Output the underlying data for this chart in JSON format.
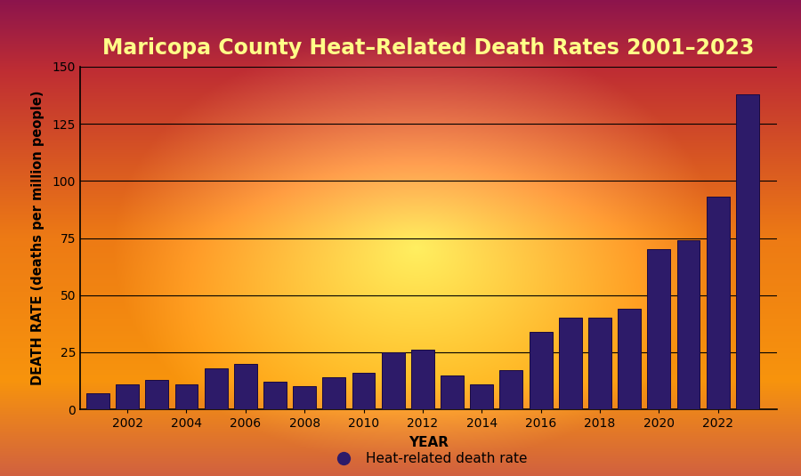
{
  "title": "Maricopa County Heat–Related Death Rates 2001–2023",
  "xlabel": "YEAR",
  "ylabel": "DEATH RATE (deaths per million people)",
  "years": [
    2001,
    2002,
    2003,
    2004,
    2005,
    2006,
    2007,
    2008,
    2009,
    2010,
    2011,
    2012,
    2013,
    2014,
    2015,
    2016,
    2017,
    2018,
    2019,
    2020,
    2021,
    2022,
    2023
  ],
  "values": [
    7,
    11,
    13,
    11,
    18,
    20,
    12,
    10,
    14,
    16,
    25,
    26,
    15,
    11,
    17,
    34,
    40,
    40,
    44,
    70,
    74,
    93,
    138
  ],
  "bar_color": "#2D1B69",
  "bar_edge_color": "#1a0a40",
  "ylim": [
    0,
    150
  ],
  "yticks": [
    0,
    25,
    50,
    75,
    100,
    125,
    150
  ],
  "xticks": [
    2002,
    2004,
    2006,
    2008,
    2010,
    2012,
    2014,
    2016,
    2018,
    2020,
    2022
  ],
  "title_color": "#FFFF88",
  "axis_label_color": "#000000",
  "tick_color": "#000000",
  "grid_color": "#000000",
  "legend_label": "Heat-related death rate",
  "legend_marker_color": "#2D1B69",
  "title_fontsize": 17,
  "axis_label_fontsize": 11,
  "tick_fontsize": 10,
  "legend_fontsize": 11
}
